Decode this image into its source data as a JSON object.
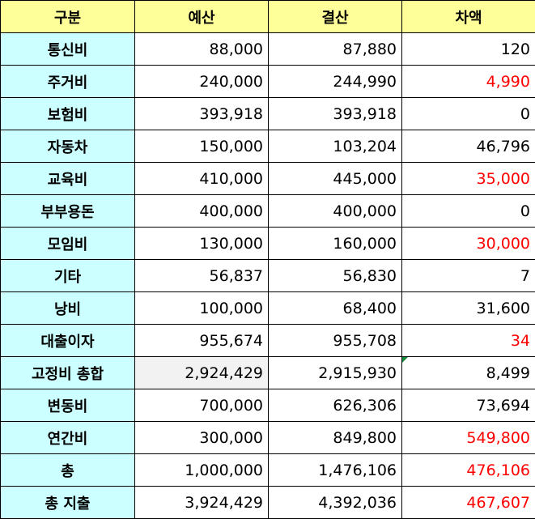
{
  "header": [
    "구분",
    "예산",
    "결산",
    "차액"
  ],
  "rows": [
    {
      "label": "통신비",
      "budget": "88,000",
      "actual": "87,880",
      "diff": "120"
    },
    {
      "label": "주거비",
      "budget": "240,000",
      "actual": "244,990",
      "diff": "4,990"
    },
    {
      "label": "보험비",
      "budget": "393,918",
      "actual": "393,918",
      "diff": "0"
    },
    {
      "label": "자동차",
      "budget": "150,000",
      "actual": "103,204",
      "diff": "46,796"
    },
    {
      "label": "교육비",
      "budget": "410,000",
      "actual": "445,000",
      "diff": "35,000"
    },
    {
      "label": "부부용돈",
      "budget": "400,000",
      "actual": "400,000",
      "diff": "0"
    },
    {
      "label": "모임비",
      "budget": "130,000",
      "actual": "160,000",
      "diff": "30,000"
    },
    {
      "label": "기타",
      "budget": "56,837",
      "actual": "56,830",
      "diff": "7"
    },
    {
      "label": "낭비",
      "budget": "100,000",
      "actual": "68,400",
      "diff": "31,600"
    },
    {
      "label": "대출이자",
      "budget": "955,674",
      "actual": "955,708",
      "diff": "34"
    },
    {
      "label": "고정비 총합",
      "budget": "2,924,429",
      "actual": "2,915,930",
      "diff": "8,499"
    },
    {
      "label": "변동비",
      "budget": "700,000",
      "actual": "626,306",
      "diff": "73,694"
    },
    {
      "label": "연간비",
      "budget": "300,000",
      "actual": "849,800",
      "diff": "549,800"
    },
    {
      "label": "총",
      "budget": "1,000,000",
      "actual": "1,476,106",
      "diff": "476,106"
    },
    {
      "label": "총 지출",
      "budget": "3,924,429",
      "actual": "4,392,036",
      "diff": "467,607"
    }
  ],
  "colors": {
    "header_bg": "#ffff99",
    "label_bg": "#ccffff",
    "overspend_text": "#ff0000",
    "normal_text": "#000000"
  }
}
